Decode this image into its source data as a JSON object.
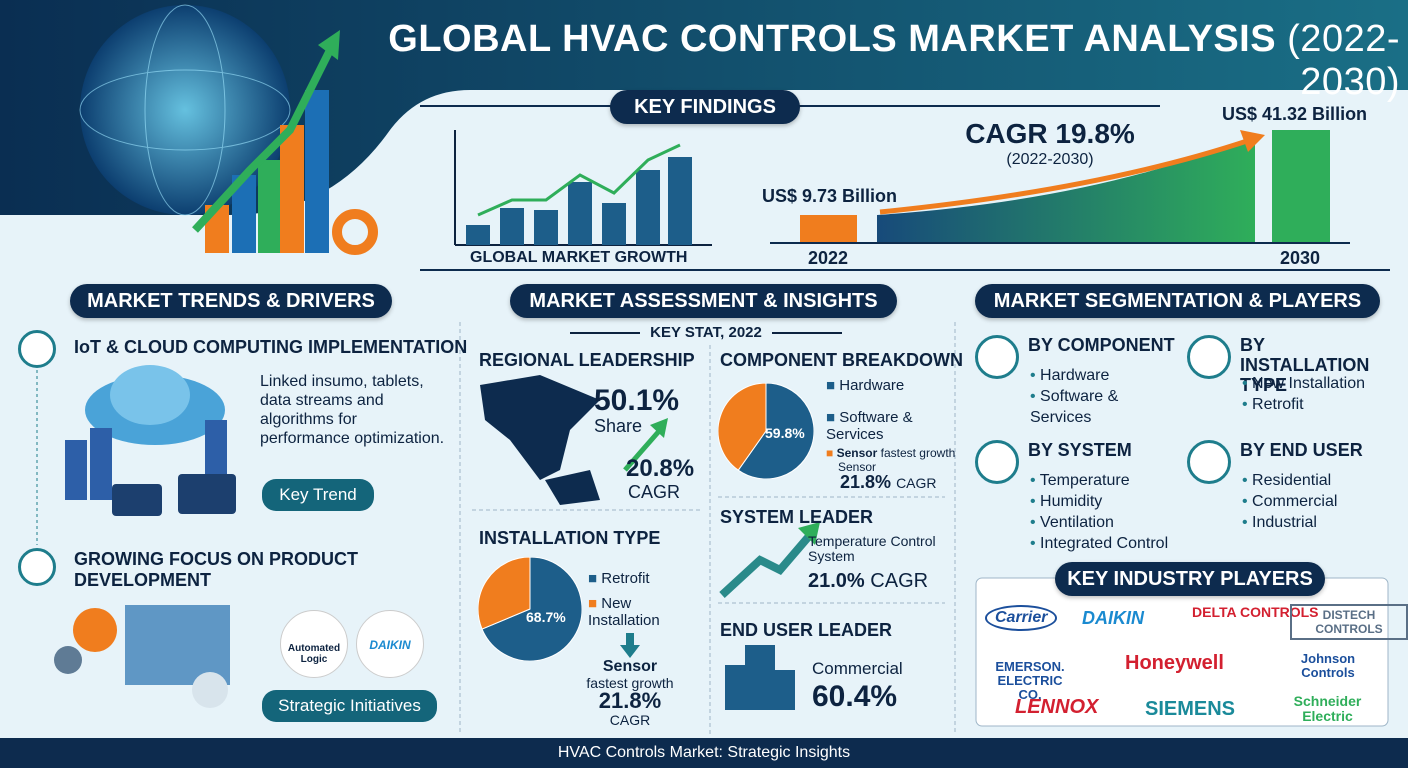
{
  "header": {
    "title": "GLOBAL HVAC CONTROLS MARKET ANALYSIS",
    "years": "(2022-2030)"
  },
  "key_findings": {
    "title": "KEY FINDINGS",
    "chart_label": "GLOBAL MARKET GROWTH",
    "cagr": "CAGR 19.8%",
    "cagr_period": "(2022-2030)",
    "start_value": "US$ 9.73 Billion",
    "end_value": "US$ 41.32 Billion",
    "start_year": "2022",
    "end_year": "2030"
  },
  "trends": {
    "title": "MARKET TRENDS & DRIVERS",
    "items": [
      {
        "heading": "IoT & CLOUD COMPUTING IMPLEMENTATION",
        "text": "Linked insumo, tablets, data streams and algorithms for performance optimization.",
        "tag": "Key Trend"
      },
      {
        "heading": "GROWING FOCUS ON PRODUCT DEVELOPMENT",
        "logos": [
          "Automated Logic",
          "DAIKIN"
        ],
        "tag": "Strategic Initiatives"
      }
    ]
  },
  "assessment": {
    "title": "MARKET ASSESSMENT & INSIGHTS",
    "subtitle": "KEY STAT, 2022",
    "regional": {
      "heading": "REGIONAL LEADERSHIP",
      "share": "50.1%",
      "share_label": "Share",
      "cagr": "20.8%",
      "cagr_label": "CAGR"
    },
    "component": {
      "heading": "COMPONENT BREAKDOWN",
      "pie": {
        "value": 59.8,
        "label": "59.8%"
      },
      "legend": [
        "Hardware",
        "Software & Services"
      ],
      "note_bold": "Sensor",
      "note": "fastest growth",
      "note_sub": "Sensor",
      "cagr": "21.8%",
      "cagr_label": "CAGR"
    },
    "installation": {
      "heading": "INSTALLATION TYPE",
      "pie": {
        "value": 68.7,
        "label": "68.7%"
      },
      "legend": [
        "Retrofit",
        "New Installation"
      ],
      "note_bold": "Sensor",
      "note": "fastest growth",
      "cagr": "21.8%",
      "cagr_label": "CAGR"
    },
    "system": {
      "heading": "SYSTEM LEADER",
      "name": "Temperature Control System",
      "cagr": "21.0%",
      "cagr_label": "CAGR"
    },
    "end_user": {
      "heading": "END USER LEADER",
      "name": "Commercial",
      "share": "60.4%"
    }
  },
  "segmentation": {
    "title": "MARKET SEGMENTATION & PLAYERS",
    "groups": [
      {
        "heading": "BY COMPONENT",
        "items": [
          "Hardware",
          "Software & Services"
        ]
      },
      {
        "heading": "BY INSTALLATION TYPE",
        "items": [
          "New Installation",
          "Retrofit"
        ]
      },
      {
        "heading": "BY SYSTEM",
        "items": [
          "Temperature",
          "Humidity",
          "Ventilation",
          "Integrated Control"
        ]
      },
      {
        "heading": "BY END USER",
        "items": [
          "Residential",
          "Commercial",
          "Industrial"
        ]
      }
    ],
    "players_title": "KEY INDUSTRY PLAYERS",
    "players": [
      "Carrier",
      "DAIKIN",
      "DELTA CONTROLS",
      "DISTECH CONTROLS",
      "EMERSON. ELECTRIC CO.",
      "Honeywell",
      "Johnson Controls",
      "LENNOX",
      "SIEMENS",
      "Schneider Electric"
    ]
  },
  "footer": "HVAC Controls Market: Strategic Insights"
}
